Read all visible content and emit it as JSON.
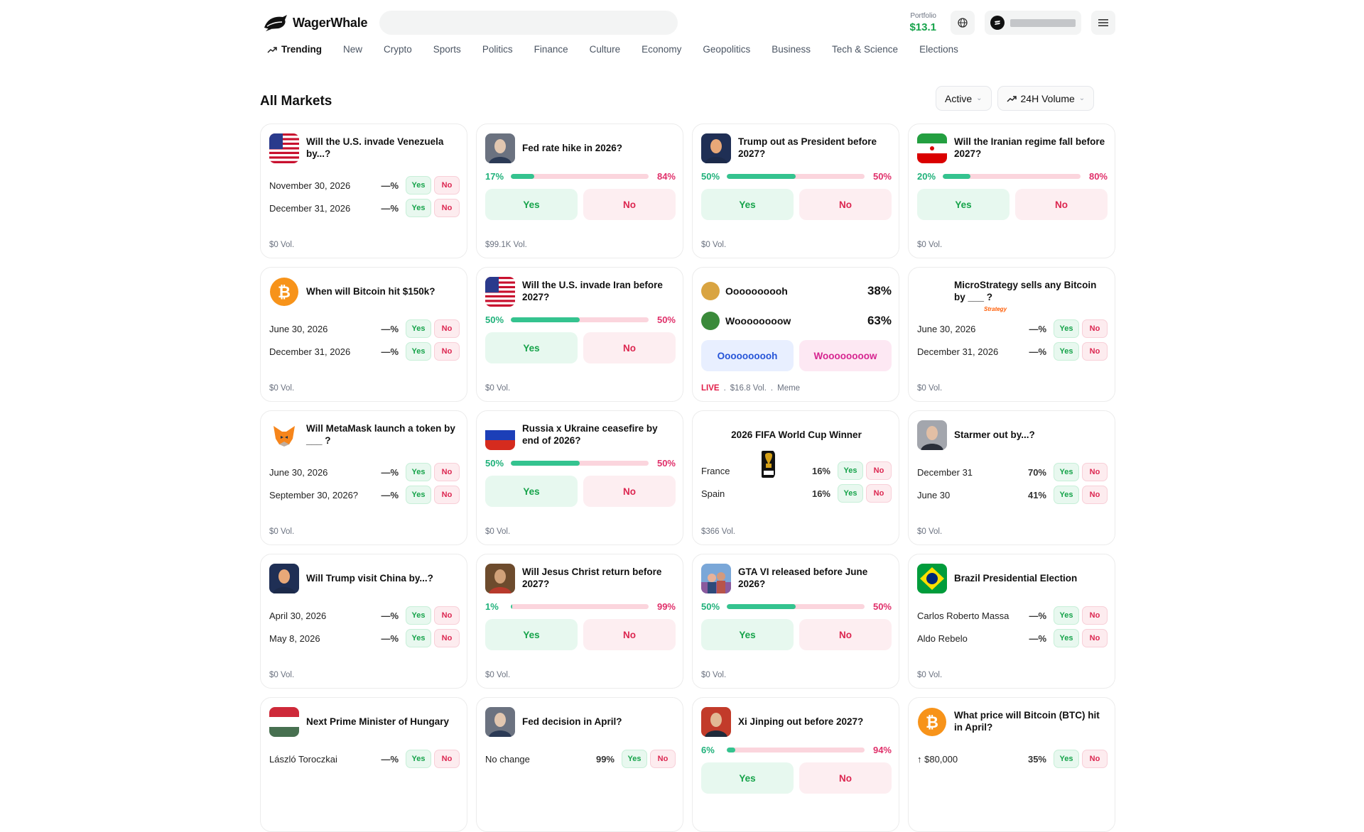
{
  "brand": {
    "name": "WagerWhale"
  },
  "search": {
    "placeholder": ""
  },
  "portfolio": {
    "label": "Portfolio",
    "value": "$13.1"
  },
  "nav": [
    {
      "label": "Trending",
      "active": true
    },
    {
      "label": "New"
    },
    {
      "label": "Crypto"
    },
    {
      "label": "Sports"
    },
    {
      "label": "Politics"
    },
    {
      "label": "Finance"
    },
    {
      "label": "Culture"
    },
    {
      "label": "Economy"
    },
    {
      "label": "Geopolitics"
    },
    {
      "label": "Business"
    },
    {
      "label": "Tech & Science"
    },
    {
      "label": "Elections"
    }
  ],
  "page": {
    "title": "All Markets"
  },
  "filters": {
    "status": "Active",
    "sort": "24H Volume"
  },
  "labels": {
    "yes": "Yes",
    "no": "No"
  },
  "colors": {
    "yes": "#16a34a",
    "no": "#dc2650",
    "bar_yes": "#34c38f",
    "bar_no": "#fbd5dd",
    "accent_green": "#16a34a"
  },
  "cards": [
    {
      "title": "Will the U.S. invade Venezuela by...?",
      "icon": "us-flag",
      "vol": "$0 Vol.",
      "rows": [
        {
          "label": "November 30, 2026",
          "pct": "—%"
        },
        {
          "label": "December 31, 2026",
          "pct": "—%"
        }
      ]
    },
    {
      "title": "Fed rate hike in 2026?",
      "icon": "powell-portrait",
      "vol": "$99.1K Vol.",
      "yes_pct": "17%",
      "no_pct": "84%",
      "yes_share": 0.17
    },
    {
      "title": "Trump out as President before 2027?",
      "icon": "trump-portrait",
      "vol": "$0 Vol.",
      "yes_pct": "50%",
      "no_pct": "50%",
      "yes_share": 0.5
    },
    {
      "title": "Will the Iranian regime fall before 2027?",
      "icon": "iran-flag",
      "vol": "$0 Vol.",
      "yes_pct": "20%",
      "no_pct": "80%",
      "yes_share": 0.2
    },
    {
      "title": "When will Bitcoin hit $150k?",
      "icon": "bitcoin-icon",
      "vol": "$0 Vol.",
      "rows": [
        {
          "label": "June 30, 2026",
          "pct": "—%"
        },
        {
          "label": "December 31, 2026",
          "pct": "—%"
        }
      ]
    },
    {
      "title": "Will the U.S. invade Iran before 2027?",
      "icon": "us-flag",
      "vol": "$0 Vol.",
      "yes_pct": "50%",
      "no_pct": "50%",
      "yes_share": 0.5
    },
    {
      "title": "",
      "icon": "meme",
      "opt_a": "Oooooooooh",
      "opt_a_pct": "38%",
      "opt_b": "Woooooooow",
      "opt_b_pct": "63%",
      "btn_a": "Oooooooooh",
      "btn_b": "Woooooooow",
      "live": "LIVE",
      "vol": "$16.8 Vol.",
      "tag": "Meme"
    },
    {
      "title": "MicroStrategy sells any Bitcoin by ___ ?",
      "icon": "strategy-logo",
      "logo_text": "Strategy",
      "vol": "$0 Vol.",
      "rows": [
        {
          "label": "June 30, 2026",
          "pct": "—%"
        },
        {
          "label": "December 31, 2026",
          "pct": "—%"
        }
      ]
    },
    {
      "title": "Will MetaMask launch a token by ___ ?",
      "icon": "metamask-fox",
      "vol": "$0 Vol.",
      "rows": [
        {
          "label": "June 30, 2026",
          "pct": "—%"
        },
        {
          "label": "September 30, 2026?",
          "pct": "—%"
        }
      ]
    },
    {
      "title": "Russia x Ukraine ceasefire by end of 2026?",
      "icon": "russia-flag",
      "vol": "$0 Vol.",
      "yes_pct": "50%",
      "no_pct": "50%",
      "yes_share": 0.5
    },
    {
      "title": "2026 FIFA World Cup Winner",
      "icon": "fifa-trophy",
      "vol": "$366 Vol.",
      "rows": [
        {
          "label": "France",
          "pct": "16%"
        },
        {
          "label": "Spain",
          "pct": "16%"
        }
      ]
    },
    {
      "title": "Starmer out by...?",
      "icon": "starmer-portrait",
      "vol": "$0 Vol.",
      "rows": [
        {
          "label": "December 31",
          "pct": "70%"
        },
        {
          "label": "June 30",
          "pct": "41%"
        }
      ]
    },
    {
      "title": "Will Trump visit China by...?",
      "icon": "trump-portrait",
      "vol": "$0 Vol.",
      "rows": [
        {
          "label": "April 30, 2026",
          "pct": "—%"
        },
        {
          "label": "May 8, 2026",
          "pct": "—%"
        }
      ]
    },
    {
      "title": "Will Jesus Christ return before 2027?",
      "icon": "jesus-portrait",
      "vol": "$0 Vol.",
      "yes_pct": "1%",
      "no_pct": "99%",
      "yes_share": 0.01
    },
    {
      "title": "GTA VI released before June 2026?",
      "icon": "gta-art",
      "vol": "$0 Vol.",
      "yes_pct": "50%",
      "no_pct": "50%",
      "yes_share": 0.5
    },
    {
      "title": "Brazil Presidential Election",
      "icon": "brazil-flag",
      "vol": "$0 Vol.",
      "rows": [
        {
          "label": "Carlos Roberto Massa",
          "pct": "—%"
        },
        {
          "label": "Aldo Rebelo",
          "pct": "—%"
        }
      ]
    },
    {
      "title": "Next Prime Minister of Hungary",
      "icon": "hungary-flag",
      "rows": [
        {
          "label": "László Toroczkai",
          "pct": "—%"
        }
      ]
    },
    {
      "title": "Fed decision in April?",
      "icon": "powell-portrait",
      "rows": [
        {
          "label": "No change",
          "pct": "99%"
        }
      ]
    },
    {
      "title": "Xi Jinping out before 2027?",
      "icon": "xi-portrait",
      "yes_pct": "6%",
      "no_pct": "94%",
      "yes_share": 0.06
    },
    {
      "title": "What price will Bitcoin (BTC) hit in April?",
      "icon": "bitcoin-icon",
      "rows": [
        {
          "label": "↑ $80,000",
          "pct": "35%"
        }
      ]
    }
  ]
}
